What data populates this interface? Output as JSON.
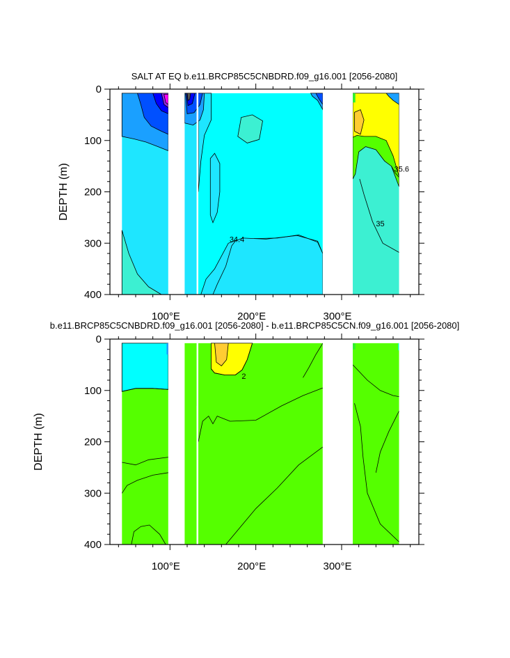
{
  "colors": {
    "cyan": "#00ffff",
    "sky": "#1ee6ff",
    "turq": "#3cf0d2",
    "blue1": "#1aa0ff",
    "blue2": "#0050ff",
    "navy": "#0000ff",
    "purple": "#8a2be2",
    "magenta": "#ff00ff",
    "gray": "#555555",
    "green": "#55ff00",
    "green2": "#2ef02e",
    "yellow": "#ffff00",
    "orange": "#ffcc33",
    "land": "#ffffff",
    "line": "#000000"
  },
  "chart_data": [
    {
      "type": "contour",
      "title": "SALT AT EQ b.e11.BRCP85C5CNBDRD.f09_g16.001 [2056-2080]",
      "ylabel": "DEPTH (m)",
      "xlabel": "",
      "xlim": [
        30,
        390
      ],
      "ylim": [
        400,
        0
      ],
      "xticks": [
        100,
        200,
        300
      ],
      "xtick_labels": [
        "100°E",
        "200°E",
        "300°E"
      ],
      "yticks": [
        0,
        100,
        200,
        300,
        400
      ],
      "ytick_labels": [
        "0",
        "100",
        "200",
        "300",
        "400"
      ],
      "contour_labels": [
        {
          "text": "34.4",
          "lon": 178,
          "depth": 292
        },
        {
          "text": "35",
          "lon": 345,
          "depth": 262
        },
        {
          "text": "35.6",
          "lon": 370,
          "depth": 155
        }
      ],
      "land_lon_ranges": [
        [
          98,
          117
        ],
        [
          131,
          133
        ],
        [
          278,
          313
        ],
        [
          367,
          390
        ]
      ]
    },
    {
      "type": "contour",
      "title": "b.e11.BRCP85C5CNBDRD.f09_g16.001 [2056-2080] - b.e11.BRCP85C5CN.f09_g16.001 [2056-2080]",
      "ylabel": "DEPTH (m)",
      "xlabel": "",
      "xlim": [
        30,
        390
      ],
      "ylim": [
        400,
        0
      ],
      "xticks": [
        100,
        200,
        300
      ],
      "xtick_labels": [
        "100°E",
        "200°E",
        "300°E"
      ],
      "yticks": [
        0,
        100,
        200,
        300,
        400
      ],
      "ytick_labels": [
        "0",
        "100",
        "200",
        "300",
        "400"
      ],
      "contour_labels": [
        {
          "text": "2",
          "lon": 186,
          "depth": 72
        }
      ],
      "land_lon_ranges": [
        [
          98,
          117
        ],
        [
          131,
          133
        ],
        [
          278,
          313
        ],
        [
          367,
          390
        ]
      ]
    }
  ]
}
